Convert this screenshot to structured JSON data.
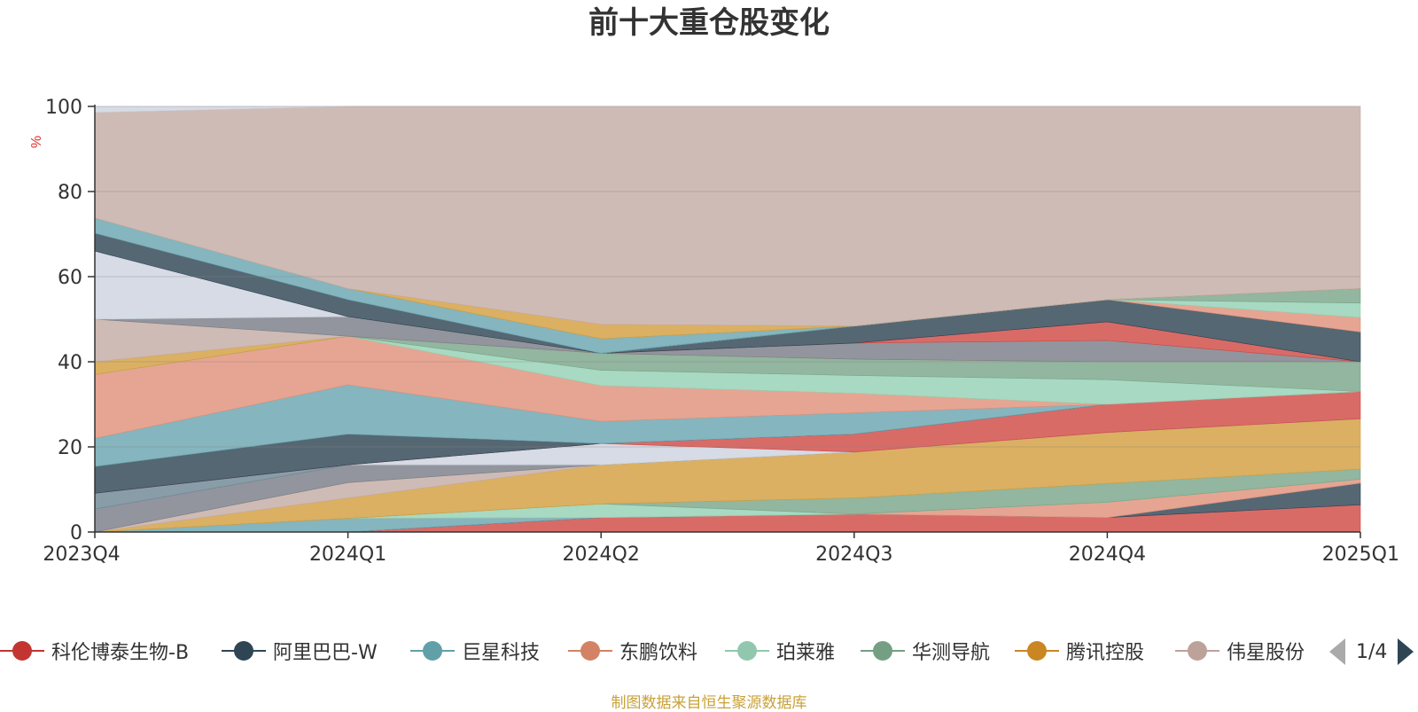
{
  "chart_data": {
    "type": "area",
    "title": "前十大重仓股变化",
    "ylabel": "%",
    "ylim": [
      0,
      100
    ],
    "yticks": [
      0,
      20,
      40,
      60,
      80,
      100
    ],
    "grid": true,
    "x": [
      "2023Q4",
      "2024Q1",
      "2024Q2",
      "2024Q3",
      "2024Q4",
      "2025Q1"
    ],
    "bands": [
      {
        "color": "#d14a46",
        "top": [
          0,
          0,
          3.4,
          4.2,
          3.4,
          6.4
        ]
      },
      {
        "color": "#2f4554",
        "top": [
          0,
          0,
          3.4,
          4.2,
          3.4,
          11.5
        ]
      },
      {
        "color": "#6aa5b0",
        "top": [
          0,
          3.2,
          3.4,
          4.2,
          3.4,
          11.5
        ]
      },
      {
        "color": "#e0917a",
        "top": [
          0,
          3.2,
          3.4,
          4.2,
          7.0,
          12.4
        ]
      },
      {
        "color": "#95d1b5",
        "top": [
          0,
          3.2,
          6.6,
          4.2,
          7.0,
          12.4
        ]
      },
      {
        "color": "#7aa68a",
        "top": [
          0,
          3.2,
          6.6,
          8.0,
          11.4,
          14.8
        ]
      },
      {
        "color": "#d39f3f",
        "top": [
          0,
          8.0,
          15.8,
          18.8,
          23.4,
          26.6
        ]
      },
      {
        "color": "#c4aca5",
        "top": [
          0,
          11.6,
          15.8,
          18.8,
          23.4,
          26.6
        ]
      },
      {
        "color": "#7a7e87",
        "top": [
          5.4,
          15.8,
          15.8,
          18.8,
          23.4,
          26.6
        ]
      },
      {
        "color": "#6f8896",
        "top": [
          9.1,
          15.8,
          15.8,
          18.8,
          23.4,
          26.6
        ]
      },
      {
        "color": "#cdd3df",
        "top": [
          9.1,
          15.8,
          20.8,
          18.8,
          23.4,
          26.6
        ]
      },
      {
        "color": "#d14a46",
        "top": [
          9.1,
          15.8,
          20.8,
          23.0,
          30.0,
          33.0
        ]
      },
      {
        "color": "#2f4554",
        "top": [
          15.4,
          23.0,
          20.8,
          23.0,
          30.0,
          33.0
        ]
      },
      {
        "color": "#6aa5b0",
        "top": [
          22.0,
          34.6,
          26.0,
          28.0,
          30.0,
          33.0
        ]
      },
      {
        "color": "#e0917a",
        "top": [
          37.0,
          46.0,
          34.4,
          32.6,
          30.0,
          33.0
        ]
      },
      {
        "color": "#95d1b5",
        "top": [
          37.0,
          46.0,
          38.0,
          36.8,
          35.8,
          33.0
        ]
      },
      {
        "color": "#7aa68a",
        "top": [
          37.0,
          46.0,
          42.0,
          40.6,
          40.0,
          40.0
        ]
      },
      {
        "color": "#d39f3f",
        "top": [
          40.0,
          46.0,
          42.0,
          40.6,
          40.0,
          40.0
        ]
      },
      {
        "color": "#c4aca5",
        "top": [
          50.0,
          46.0,
          42.0,
          40.6,
          40.0,
          40.0
        ]
      },
      {
        "color": "#7a7e87",
        "top": [
          50.0,
          50.6,
          42.0,
          44.4,
          45.0,
          40.0
        ]
      },
      {
        "color": "#d14a46",
        "top": [
          50.0,
          50.6,
          42.0,
          44.4,
          49.4,
          40.0
        ]
      },
      {
        "color": "#2f4554",
        "top": [
          50.0,
          50.6,
          42.0,
          48.4,
          54.6,
          47.0
        ]
      },
      {
        "color": "#e0917a",
        "top": [
          50.0,
          50.6,
          42.0,
          48.4,
          54.6,
          50.4
        ]
      },
      {
        "color": "#95d1b5",
        "top": [
          50.0,
          50.6,
          42.0,
          48.4,
          54.6,
          53.8
        ]
      },
      {
        "color": "#7aa68a",
        "top": [
          50.0,
          50.6,
          42.0,
          48.4,
          54.6,
          57.2
        ]
      },
      {
        "color": "#cdd3df",
        "top": [
          66.0,
          50.6,
          42.0,
          48.4,
          54.6,
          57.2
        ]
      },
      {
        "color": "#2f4554",
        "top": [
          70.2,
          54.6,
          42.0,
          48.4,
          54.6,
          57.2
        ]
      },
      {
        "color": "#6aa5b0",
        "top": [
          73.8,
          57.2,
          45.4,
          48.4,
          54.6,
          57.2
        ]
      },
      {
        "color": "#d39f3f",
        "top": [
          73.8,
          57.2,
          48.8,
          48.4,
          54.6,
          57.2
        ]
      },
      {
        "color": "#c4aca5",
        "top": [
          98.6,
          100,
          100,
          100,
          100,
          100
        ]
      },
      {
        "color": "#cdd3df",
        "top": [
          100,
          100,
          100,
          100,
          100,
          100
        ]
      }
    ]
  },
  "legend": {
    "items": [
      {
        "label": "科伦博泰生物-B",
        "color": "#c23531"
      },
      {
        "label": "阿里巴巴-W",
        "color": "#2f4554"
      },
      {
        "label": "巨星科技",
        "color": "#61a0a8"
      },
      {
        "label": "东鹏饮料",
        "color": "#d48265"
      },
      {
        "label": "珀莱雅",
        "color": "#91c7ae"
      },
      {
        "label": "华测导航",
        "color": "#749f83"
      },
      {
        "label": "腾讯控股",
        "color": "#ca8622"
      },
      {
        "label": "伟星股份",
        "color": "#bda29a"
      }
    ],
    "page_text": "1/4"
  },
  "footer": {
    "source_note": "制图数据来自恒生聚源数据库"
  }
}
